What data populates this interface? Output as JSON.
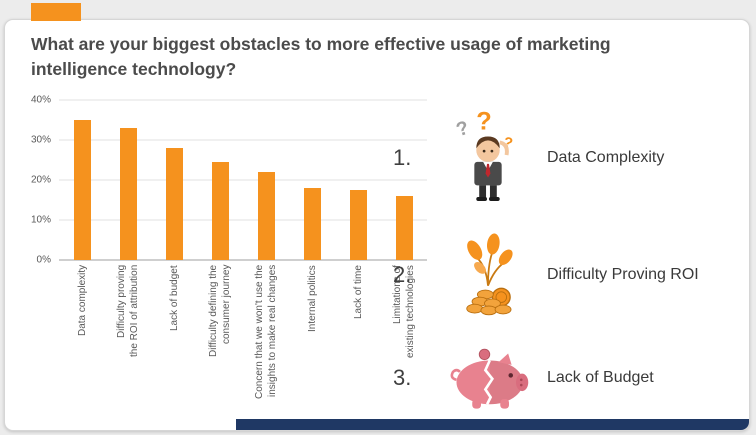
{
  "title": "What are your biggest obstacles to more effective usage of marketing intelligence technology?",
  "colors": {
    "accent": "#F5921E",
    "footer": "#1F3864",
    "bar": "#F5921E",
    "piggy": "#E8828F"
  },
  "chart_data": {
    "type": "bar",
    "title": "What are your biggest obstacles to more effective usage of marketing intelligence technology?",
    "categories": [
      "Data complexity",
      "Difficulty proving\nthe ROI of attribution",
      "Lack of budget",
      "Difficulty defining the\nconsumer journey",
      "Concern that we won't use the\ninsights to make real changes",
      "Internal politics",
      "Lack of time",
      "Limitations of\nexisting technologies"
    ],
    "values": [
      35,
      33,
      28,
      24.5,
      22,
      18,
      17.5,
      16
    ],
    "xlabel": "",
    "ylabel": "",
    "ylim": [
      0,
      40
    ],
    "yticks": [
      0,
      10,
      20,
      30,
      40
    ],
    "ytick_suffix": "%",
    "bar_color": "#F5921E",
    "grid": true,
    "legend": false
  },
  "rankings": [
    {
      "rank": "1.",
      "icon": "confused-person-icon",
      "label": "Data Complexity"
    },
    {
      "rank": "2.",
      "icon": "money-plant-icon",
      "label": "Difficulty Proving ROI"
    },
    {
      "rank": "3.",
      "icon": "piggy-bank-icon",
      "label": "Lack of Budget"
    }
  ]
}
